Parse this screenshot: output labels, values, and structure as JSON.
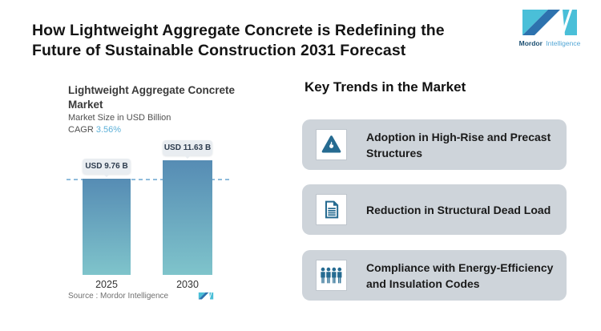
{
  "header": {
    "title_line1": "How Lightweight Aggregate Concrete is Redefining the",
    "title_line2": "Future of Sustainable Construction 2031 Forecast",
    "logo_bold": "Mordor",
    "logo_light": "Intelligence"
  },
  "chart": {
    "title_line1": "Lightweight Aggregate Concrete",
    "title_line2": "Market",
    "subtitle": "Market Size in USD Billion",
    "cagr_label": "CAGR",
    "cagr_value": "3.56%",
    "source_label": "Source :  Mordor Intelligence",
    "bars": [
      {
        "year": "2025",
        "label": "USD 9.76 B",
        "value": 9.76
      },
      {
        "year": "2030",
        "label": "USD 11.63 B",
        "value": 11.63
      }
    ]
  },
  "chart_data": {
    "type": "bar",
    "categories": [
      "2025",
      "2030"
    ],
    "values": [
      9.76,
      11.63
    ],
    "data_labels": [
      "USD 9.76 B",
      "USD 11.63 B"
    ],
    "title": "Lightweight Aggregate Concrete Market",
    "subtitle": "Market Size in USD Billion",
    "cagr": "3.56%",
    "unit": "USD Billion",
    "xlabel": "",
    "ylabel": "Market Size in USD Billion",
    "grid": false,
    "legend": false,
    "reference_line_at_value": 9.76,
    "source": "Mordor Intelligence"
  },
  "trends": {
    "heading": "Key Trends in the Market",
    "cards": [
      {
        "icon": "flame-triangle-icon",
        "label": "Adoption in High-Rise and Precast Structures"
      },
      {
        "icon": "document-icon",
        "label": "Reduction in Structural Dead Load"
      },
      {
        "icon": "people-group-icon",
        "label": "Compliance with Energy-Efficiency and Insulation Codes"
      }
    ]
  },
  "colors": {
    "bar_gradient_top": "#568cb4",
    "bar_gradient_bottom": "#7fc4cb",
    "dashed_line": "#8fbcdc",
    "cagr_accent": "#5cb0d8",
    "card_background": "#ced4da",
    "icon_blue": "#266b91",
    "logo_dark_blue": "#2d72ae",
    "logo_light_blue": "#4abfd8",
    "tooltip_background": "#e9edf1"
  }
}
